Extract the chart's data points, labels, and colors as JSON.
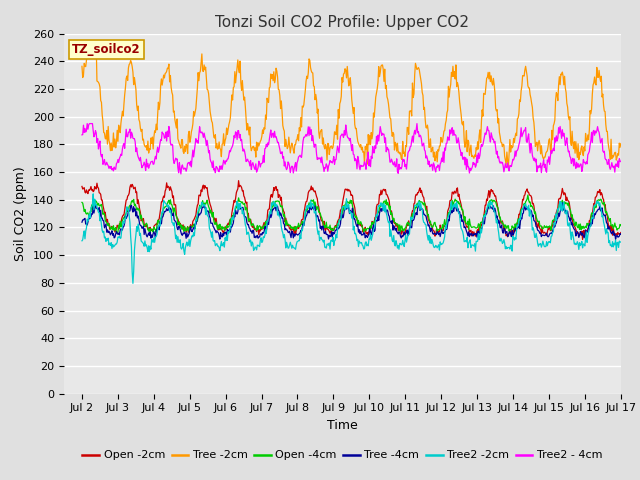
{
  "title": "Tonzi Soil CO2 Profile: Upper CO2",
  "xlabel": "Time",
  "ylabel": "Soil CO2 (ppm)",
  "ylim": [
    0,
    260
  ],
  "yticks": [
    0,
    20,
    40,
    60,
    80,
    100,
    120,
    140,
    160,
    180,
    200,
    220,
    240,
    260
  ],
  "xlim_days": [
    1.5,
    16.7
  ],
  "xtick_days": [
    2,
    3,
    4,
    5,
    6,
    7,
    8,
    9,
    10,
    11,
    12,
    13,
    14,
    15,
    16,
    17
  ],
  "xtick_labels": [
    "Jul 2",
    "Jul 3",
    "Jul 4",
    "Jul 5",
    "Jul 6",
    "Jul 7",
    "Jul 8",
    "Jul 9",
    "Jul 10",
    "Jul 11",
    "Jul 12",
    "Jul 13",
    "Jul 14",
    "Jul 15",
    "Jul 16",
    "Jul 17"
  ],
  "legend_label": "TZ_soilco2",
  "series": [
    {
      "label": "Open -2cm",
      "color": "#cc0000"
    },
    {
      "label": "Tree -2cm",
      "color": "#ff9900"
    },
    {
      "label": "Open -4cm",
      "color": "#00cc00"
    },
    {
      "label": "Tree -4cm",
      "color": "#000099"
    },
    {
      "label": "Tree2 -2cm",
      "color": "#00cccc"
    },
    {
      "label": "Tree2 - 4cm",
      "color": "#ff00ff"
    }
  ],
  "background_color": "#e0e0e0",
  "plot_bg_color": "#e8e8e8",
  "grid_color": "#ffffff",
  "title_fontsize": 11,
  "axis_label_fontsize": 9,
  "tick_fontsize": 8,
  "legend_fontsize": 8
}
